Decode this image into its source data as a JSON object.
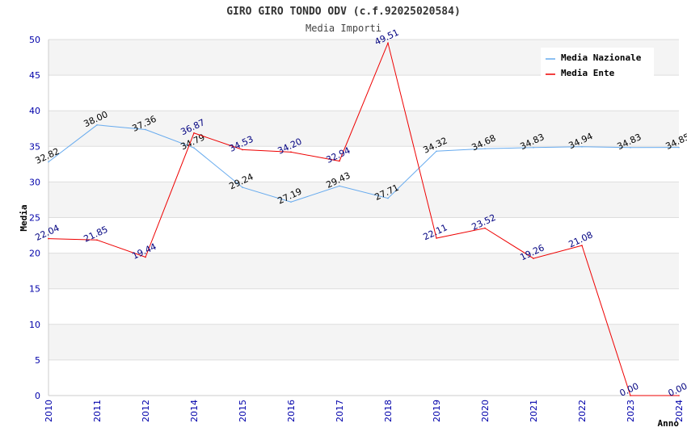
{
  "chart_data": {
    "type": "line",
    "title": "GIRO GIRO TONDO ODV (c.f.92025020584)",
    "subtitle": "Media Importi",
    "xlabel": "Anno",
    "ylabel": "Media",
    "ylim": [
      0,
      50
    ],
    "yticks": [
      0,
      5,
      10,
      15,
      20,
      25,
      30,
      35,
      40,
      45,
      50
    ],
    "grid": true,
    "legend_position": "top-right",
    "categories": [
      "2010",
      "2011",
      "2012",
      "2014",
      "2015",
      "2016",
      "2017",
      "2018",
      "2019",
      "2020",
      "2021",
      "2022",
      "2023",
      "2024"
    ],
    "series": [
      {
        "name": "Media Nazionale",
        "color": "#66aaee",
        "label_color": "#000000",
        "values": [
          32.82,
          38.0,
          37.36,
          34.79,
          29.24,
          27.19,
          29.43,
          27.71,
          34.32,
          34.68,
          34.83,
          34.94,
          34.83,
          34.85
        ],
        "labels": [
          "32.82",
          "38.00",
          "37.36",
          "34.79",
          "29.24",
          "27.19",
          "29.43",
          "27.71",
          "34.32",
          "34.68",
          "34.83",
          "34.94",
          "34.83",
          "34.85"
        ]
      },
      {
        "name": "Media Ente",
        "color": "#ee0000",
        "label_color": "#000080",
        "values": [
          22.04,
          21.85,
          19.44,
          36.87,
          34.53,
          34.2,
          32.94,
          49.51,
          22.11,
          23.52,
          19.26,
          21.08,
          0.0,
          0.0
        ],
        "labels": [
          "22.04",
          "21.85",
          "19.44",
          "36.87",
          "34.53",
          "34.20",
          "32.94",
          "49.51",
          "22.11",
          "23.52",
          "19.26",
          "21.08",
          "0.00",
          "0.00"
        ]
      }
    ],
    "colors": {
      "band_a": "#f4f4f4",
      "band_b": "#ffffff",
      "grid": "#dddddd",
      "axis_label": "#0000aa",
      "title": "#333333"
    }
  }
}
